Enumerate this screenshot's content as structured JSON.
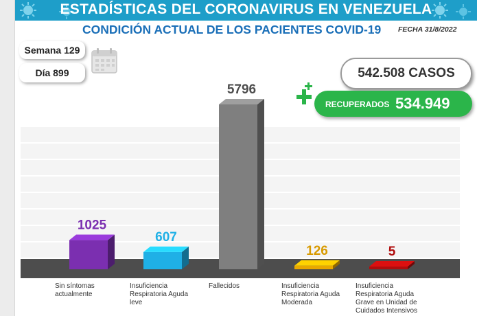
{
  "header": {
    "title": "ESTADÍSTICAS DEL CORONAVIRUS EN VENEZUELA",
    "subtitle": "CONDICIÓN ACTUAL DE LOS PACIENTES COVID-19",
    "fecha": "FECHA 31/8/2022"
  },
  "period": {
    "week": "Semana 129",
    "day": "Día 899"
  },
  "totals": {
    "casos": "542.508 CASOS",
    "recuperados_label": "RECUPERADOS",
    "recuperados_value": "534.949"
  },
  "icons": [
    "virus-icon",
    "calendar-icon",
    "plus-icon"
  ],
  "colors": {
    "banner": "#1e9ec9",
    "subtitle": "#1a6fb8",
    "recovered": "#2bb54a",
    "floor": "#4d4d4d"
  },
  "chart_data": {
    "type": "bar",
    "categories": [
      [
        "Sin síntomas",
        "actualmente"
      ],
      [
        "Insuficiencia",
        "Respiratoria Aguda",
        "leve"
      ],
      [
        "Fallecidos"
      ],
      [
        "Insuficiencia",
        "Respiratoria Aguda",
        "Moderada"
      ],
      [
        "Insuficiencia",
        "Respiratoria Aguda",
        "Grave en Unidad de",
        "Cuidados Intensivos"
      ]
    ],
    "values": [
      1025,
      607,
      5796,
      126,
      5
    ],
    "value_labels": [
      "1025",
      "607",
      "5796",
      "126",
      "5"
    ],
    "colors": [
      "#7b2fb0",
      "#1fb0e6",
      "#7f7f7f",
      "#e9a800",
      "#b00d0d"
    ],
    "label_colors": [
      "#7b2fb0",
      "#1fb0e6",
      "#4d4d4d",
      "#d89a00",
      "#b00d0d"
    ],
    "ylim": [
      0,
      5796
    ],
    "grid": true,
    "style": "3d-columns"
  }
}
